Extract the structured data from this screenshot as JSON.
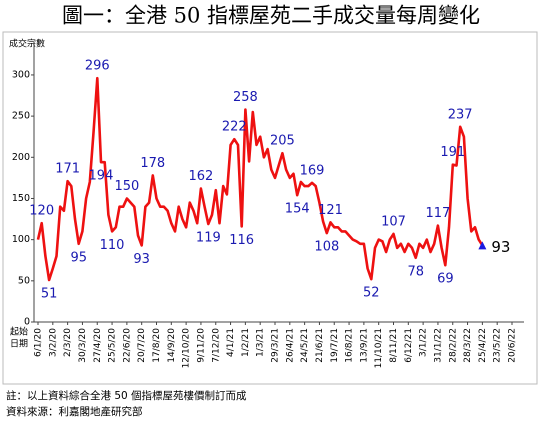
{
  "chart_data": {
    "type": "line",
    "title": "圖一：全港 50 指標屋苑二手成交量每周變化",
    "y_label": "成交宗數",
    "x_label_lines": [
      "起始",
      "日期"
    ],
    "footnotes": [
      "註：以上資料綜合全港 50 個指標屋苑樓價制訂而成",
      "資料來源：利嘉閣地產研究部"
    ],
    "color": "#ee1111",
    "label_color": "#1a1ab0",
    "last_marker_color": "#1a1ae0",
    "grid": false,
    "ylim": [
      0,
      340
    ],
    "yticks": [
      0,
      50,
      100,
      150,
      200,
      250,
      300
    ],
    "categories": [
      "6/1/20",
      null,
      null,
      null,
      "3/2/20",
      null,
      null,
      null,
      "2/3/20",
      null,
      null,
      null,
      "30/3/20",
      null,
      null,
      null,
      "27/4/20",
      null,
      null,
      null,
      "25/5/20",
      null,
      null,
      null,
      "22/6/20",
      null,
      null,
      null,
      "20/7/20",
      null,
      null,
      null,
      "17/8/20",
      null,
      null,
      null,
      "14/9/20",
      null,
      null,
      null,
      "12/10/20",
      null,
      null,
      null,
      "9/11/20",
      null,
      null,
      null,
      "7/12/20",
      null,
      null,
      null,
      "4/1/21",
      null,
      null,
      null,
      "1/2/21",
      null,
      null,
      null,
      "1/3/21",
      null,
      null,
      null,
      "29/3/21",
      null,
      null,
      null,
      "26/4/21",
      null,
      null,
      null,
      "24/5/21",
      null,
      null,
      null,
      "21/6/21",
      null,
      null,
      null,
      "19/7/21",
      null,
      null,
      null,
      "16/8/21",
      null,
      null,
      null,
      "13/9/21",
      null,
      null,
      null,
      "11/10/21",
      null,
      null,
      null,
      "8/11/21",
      null,
      null,
      null,
      "6/12/21",
      null,
      null,
      null,
      "3/1/22",
      null,
      null,
      null,
      "31/1/22",
      null,
      null,
      null,
      "28/2/22",
      null,
      null,
      null,
      "28/3/22",
      null,
      null,
      null,
      "25/4/22",
      null,
      null,
      null,
      "23/5/22",
      null,
      null,
      null,
      "20/6/22"
    ],
    "values": [
      100,
      120,
      80,
      51,
      65,
      80,
      140,
      135,
      171,
      165,
      125,
      95,
      110,
      150,
      170,
      230,
      296,
      194,
      194,
      130,
      110,
      115,
      140,
      140,
      150,
      145,
      140,
      105,
      93,
      140,
      145,
      178,
      150,
      140,
      140,
      135,
      120,
      110,
      140,
      125,
      115,
      145,
      135,
      120,
      162,
      140,
      119,
      130,
      160,
      120,
      165,
      155,
      215,
      222,
      215,
      116,
      258,
      195,
      255,
      215,
      225,
      200,
      210,
      185,
      175,
      190,
      205,
      185,
      175,
      180,
      154,
      170,
      165,
      165,
      169,
      165,
      145,
      122,
      108,
      121,
      115,
      115,
      110,
      110,
      105,
      100,
      98,
      95,
      95,
      65,
      52,
      90,
      100,
      98,
      85,
      100,
      107,
      90,
      95,
      85,
      95,
      90,
      78,
      95,
      90,
      100,
      85,
      95,
      117,
      90,
      69,
      115,
      191,
      190,
      237,
      225,
      150,
      110,
      115,
      100,
      93,
      null,
      null,
      null,
      null,
      null,
      null,
      null,
      null
    ],
    "value_labels": [
      null,
      "120",
      null,
      "51",
      null,
      null,
      null,
      null,
      "171",
      null,
      null,
      "95",
      null,
      null,
      null,
      null,
      "296",
      "194",
      null,
      null,
      "110",
      null,
      null,
      null,
      "150",
      null,
      null,
      null,
      "93",
      null,
      null,
      "178",
      null,
      null,
      null,
      null,
      null,
      null,
      null,
      null,
      null,
      null,
      null,
      null,
      "162",
      null,
      "119",
      null,
      null,
      null,
      null,
      null,
      null,
      "222",
      null,
      "116",
      "258",
      null,
      null,
      null,
      null,
      null,
      null,
      null,
      null,
      null,
      "205",
      null,
      null,
      null,
      "154",
      null,
      null,
      null,
      "169",
      null,
      null,
      null,
      "108",
      "121",
      null,
      null,
      null,
      null,
      null,
      null,
      null,
      null,
      null,
      null,
      "52",
      null,
      null,
      null,
      null,
      null,
      "107",
      null,
      null,
      null,
      null,
      null,
      "78",
      null,
      null,
      null,
      null,
      null,
      "117",
      null,
      "69",
      null,
      "191",
      null,
      "237",
      null,
      null,
      null,
      null,
      null,
      "93",
      null,
      null,
      null,
      null,
      null,
      null,
      null,
      null
    ]
  }
}
